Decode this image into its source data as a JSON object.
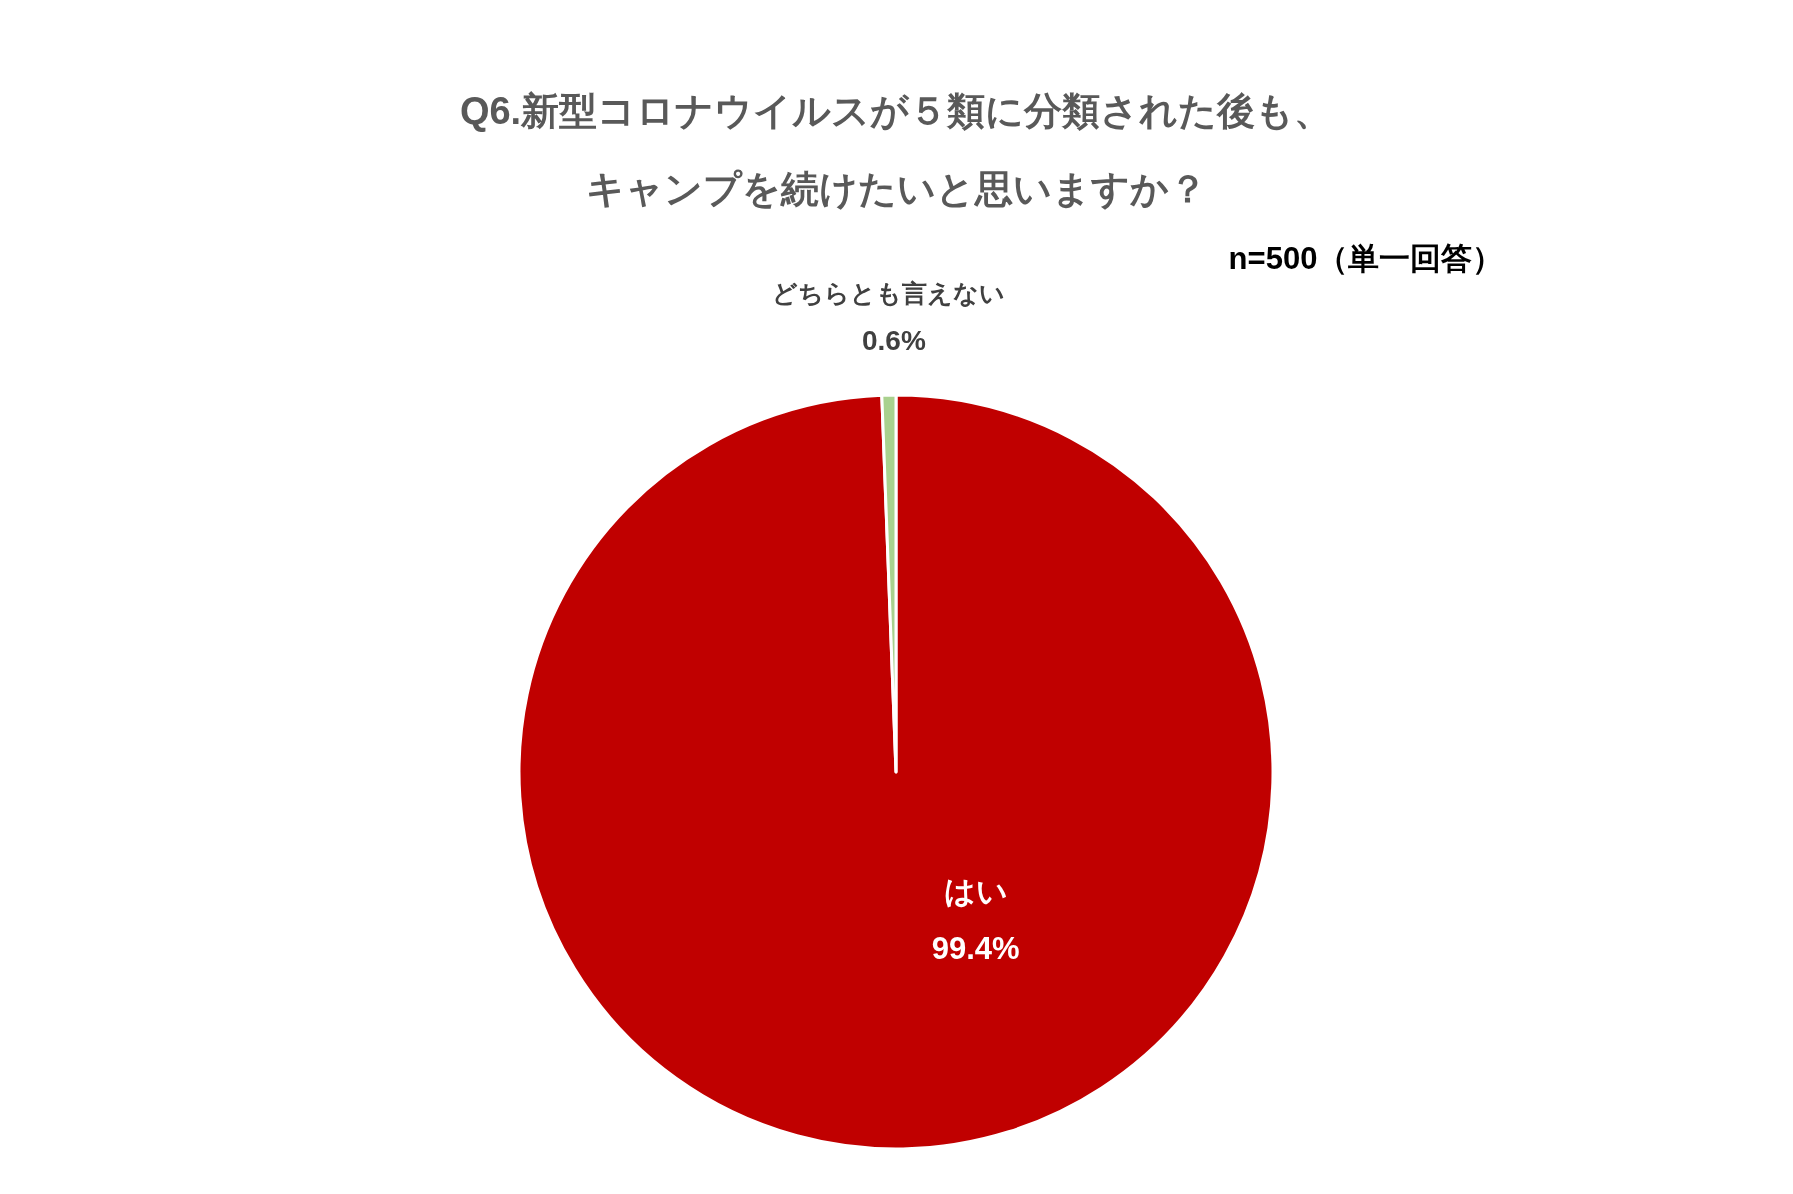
{
  "chart_data": {
    "type": "pie",
    "title": "Q6.新型コロナウイルスが５類に分類された後も、キャンプを続けたいと思いますか？",
    "annotations": [
      "n=500（単一回答）"
    ],
    "categories": [
      "はい",
      "どちらとも言えない"
    ],
    "values": [
      99.4,
      0.6
    ],
    "colors": [
      "#c00000",
      "#a9d18e"
    ],
    "value_labels": [
      "99.4%",
      "0.6%"
    ]
  }
}
